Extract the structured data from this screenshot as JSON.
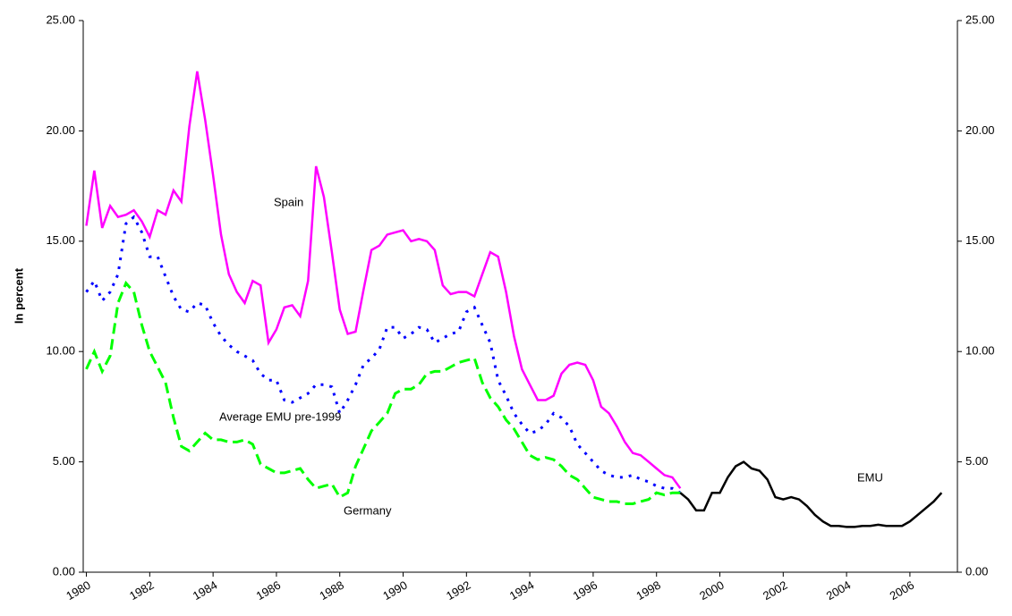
{
  "chart_data": {
    "type": "line",
    "ylabel": "In percent",
    "annotations": [
      "Spain",
      "Average EMU pre-1999",
      "Germany",
      "EMU"
    ],
    "x": [
      1980,
      1980.25,
      1980.5,
      1980.75,
      1981,
      1981.25,
      1981.5,
      1981.75,
      1982,
      1982.25,
      1982.5,
      1982.75,
      1983,
      1983.25,
      1983.5,
      1983.75,
      1984,
      1984.25,
      1984.5,
      1984.75,
      1985,
      1985.25,
      1985.5,
      1985.75,
      1986,
      1986.25,
      1986.5,
      1986.75,
      1987,
      1987.25,
      1987.5,
      1987.75,
      1988,
      1988.25,
      1988.5,
      1988.75,
      1989,
      1989.25,
      1989.5,
      1989.75,
      1990,
      1990.25,
      1990.5,
      1990.75,
      1991,
      1991.25,
      1991.5,
      1991.75,
      1992,
      1992.25,
      1992.5,
      1992.75,
      1993,
      1993.25,
      1993.5,
      1993.75,
      1994,
      1994.25,
      1994.5,
      1994.75,
      1995,
      1995.25,
      1995.5,
      1995.75,
      1996,
      1996.25,
      1996.5,
      1996.75,
      1997,
      1997.25,
      1997.5,
      1997.75,
      1998,
      1998.25,
      1998.5,
      1998.75,
      1999,
      1999.25,
      1999.5,
      1999.75,
      2000,
      2000.25,
      2000.5,
      2000.75,
      2001,
      2001.25,
      2001.5,
      2001.75,
      2002,
      2002.25,
      2002.5,
      2002.75,
      2003,
      2003.25,
      2003.5,
      2003.75,
      2004,
      2004.25,
      2004.5,
      2004.75,
      2005,
      2005.25,
      2005.5,
      2005.75,
      2006,
      2006.25,
      2006.5,
      2006.75,
      2007
    ],
    "series": [
      {
        "name": "Spain",
        "color": "#ff00ff",
        "dash": "solid",
        "values": [
          15.7,
          18.2,
          15.6,
          16.6,
          16.1,
          16.2,
          16.4,
          15.9,
          15.2,
          16.4,
          16.2,
          17.3,
          16.8,
          20.2,
          22.7,
          20.5,
          18.0,
          15.3,
          13.5,
          12.7,
          12.2,
          13.2,
          13.0,
          10.4,
          11.0,
          12.0,
          12.1,
          11.6,
          13.2,
          18.4,
          17.0,
          14.5,
          11.9,
          10.8,
          10.9,
          12.8,
          14.6,
          14.8,
          15.3,
          15.4,
          15.5,
          15.0,
          15.1,
          15.0,
          14.6,
          13.0,
          12.6,
          12.7,
          12.7,
          12.5,
          13.5,
          14.5,
          14.3,
          12.7,
          10.7,
          9.2,
          8.5,
          7.8,
          7.8,
          8.0,
          9.0,
          9.4,
          9.5,
          9.4,
          8.7,
          7.5,
          7.2,
          6.6,
          5.9,
          5.4,
          5.3,
          5.0,
          4.7,
          4.4,
          4.3,
          3.8,
          null,
          null,
          null,
          null,
          null,
          null,
          null,
          null,
          null,
          null,
          null,
          null,
          null,
          null,
          null,
          null,
          null,
          null,
          null,
          null,
          null,
          null,
          null,
          null,
          null,
          null,
          null,
          null,
          null,
          null,
          null,
          null,
          null
        ]
      },
      {
        "name": "Average EMU pre-1999",
        "color": "#0000ff",
        "dash": "dotted",
        "values": [
          12.7,
          13.2,
          12.3,
          12.7,
          13.5,
          15.8,
          16.1,
          15.4,
          14.3,
          14.3,
          13.4,
          12.5,
          11.9,
          11.8,
          12.2,
          12.1,
          11.3,
          10.7,
          10.3,
          10.0,
          9.8,
          9.6,
          9.0,
          8.7,
          8.7,
          7.8,
          7.7,
          7.9,
          8.1,
          8.5,
          8.5,
          8.4,
          7.2,
          7.8,
          8.5,
          9.4,
          9.7,
          10.1,
          11.1,
          11.1,
          10.6,
          10.8,
          11.1,
          11.0,
          10.4,
          10.6,
          10.8,
          10.9,
          11.8,
          12.0,
          11.2,
          10.4,
          8.7,
          8.0,
          7.2,
          6.7,
          6.3,
          6.4,
          6.7,
          7.2,
          7.0,
          6.6,
          5.8,
          5.4,
          5.0,
          4.6,
          4.4,
          4.3,
          4.3,
          4.4,
          4.2,
          4.1,
          3.9,
          3.8,
          3.8,
          3.6,
          null,
          null,
          null,
          null,
          null,
          null,
          null,
          null,
          null,
          null,
          null,
          null,
          null,
          null,
          null,
          null,
          null,
          null,
          null,
          null,
          null,
          null,
          null,
          null,
          null,
          null,
          null,
          null,
          null,
          null,
          null,
          null,
          null
        ]
      },
      {
        "name": "Germany",
        "color": "#00ff00",
        "dash": "dashed",
        "values": [
          9.2,
          10.0,
          9.1,
          9.8,
          12.2,
          13.1,
          12.7,
          11.2,
          10.0,
          9.3,
          8.6,
          7.0,
          5.7,
          5.5,
          5.9,
          6.3,
          6.0,
          6.0,
          5.9,
          5.9,
          6.0,
          5.8,
          4.9,
          4.7,
          4.5,
          4.5,
          4.6,
          4.7,
          4.2,
          3.8,
          3.9,
          4.0,
          3.4,
          3.6,
          4.8,
          5.6,
          6.4,
          6.8,
          7.2,
          8.1,
          8.3,
          8.3,
          8.5,
          9.0,
          9.1,
          9.1,
          9.3,
          9.5,
          9.6,
          9.7,
          8.6,
          7.9,
          7.5,
          6.9,
          6.5,
          5.9,
          5.3,
          5.1,
          5.2,
          5.1,
          4.8,
          4.4,
          4.2,
          3.8,
          3.4,
          3.3,
          3.2,
          3.2,
          3.1,
          3.1,
          3.2,
          3.3,
          3.6,
          3.5,
          3.6,
          3.6,
          null,
          null,
          null,
          null,
          null,
          null,
          null,
          null,
          null,
          null,
          null,
          null,
          null,
          null,
          null,
          null,
          null,
          null,
          null,
          null,
          null,
          null,
          null,
          null,
          null,
          null,
          null,
          null,
          null,
          null,
          null,
          null,
          null
        ]
      },
      {
        "name": "EMU",
        "color": "#000000",
        "dash": "solid",
        "values": [
          null,
          null,
          null,
          null,
          null,
          null,
          null,
          null,
          null,
          null,
          null,
          null,
          null,
          null,
          null,
          null,
          null,
          null,
          null,
          null,
          null,
          null,
          null,
          null,
          null,
          null,
          null,
          null,
          null,
          null,
          null,
          null,
          null,
          null,
          null,
          null,
          null,
          null,
          null,
          null,
          null,
          null,
          null,
          null,
          null,
          null,
          null,
          null,
          null,
          null,
          null,
          null,
          null,
          null,
          null,
          null,
          null,
          null,
          null,
          null,
          null,
          null,
          null,
          null,
          null,
          null,
          null,
          null,
          null,
          null,
          null,
          null,
          null,
          null,
          null,
          3.6,
          3.3,
          2.8,
          2.8,
          3.6,
          3.6,
          4.3,
          4.8,
          5.0,
          4.7,
          4.6,
          4.2,
          3.4,
          3.3,
          3.4,
          3.3,
          3.0,
          2.6,
          2.3,
          2.1,
          2.1,
          2.05,
          2.05,
          2.1,
          2.1,
          2.15,
          2.1,
          2.1,
          2.1,
          2.3,
          2.6,
          2.9,
          3.2,
          3.6
        ]
      }
    ],
    "xlim": [
      1979.9,
      2007.5
    ],
    "xticks": [
      1980,
      1982,
      1984,
      1986,
      1988,
      1990,
      1992,
      1994,
      1996,
      1998,
      2000,
      2002,
      2004,
      2006
    ],
    "ylim": [
      0,
      25
    ],
    "yticks": [
      {
        "value": 0,
        "label": "0.00"
      },
      {
        "value": 5,
        "label": "5.00"
      },
      {
        "value": 10,
        "label": "10.00"
      },
      {
        "value": 15,
        "label": "15.00"
      },
      {
        "value": 20,
        "label": "20.00"
      },
      {
        "value": 25,
        "label": "25.00"
      }
    ],
    "y2lim": [
      0,
      25
    ],
    "y2ticks": [
      {
        "value": 0,
        "label": "0.00"
      },
      {
        "value": 5,
        "label": "5.00"
      },
      {
        "value": 10,
        "label": "10.00"
      },
      {
        "value": 15,
        "label": "15.00"
      },
      {
        "value": 20,
        "label": "20.00"
      },
      {
        "value": 25,
        "label": "25.00"
      }
    ]
  }
}
